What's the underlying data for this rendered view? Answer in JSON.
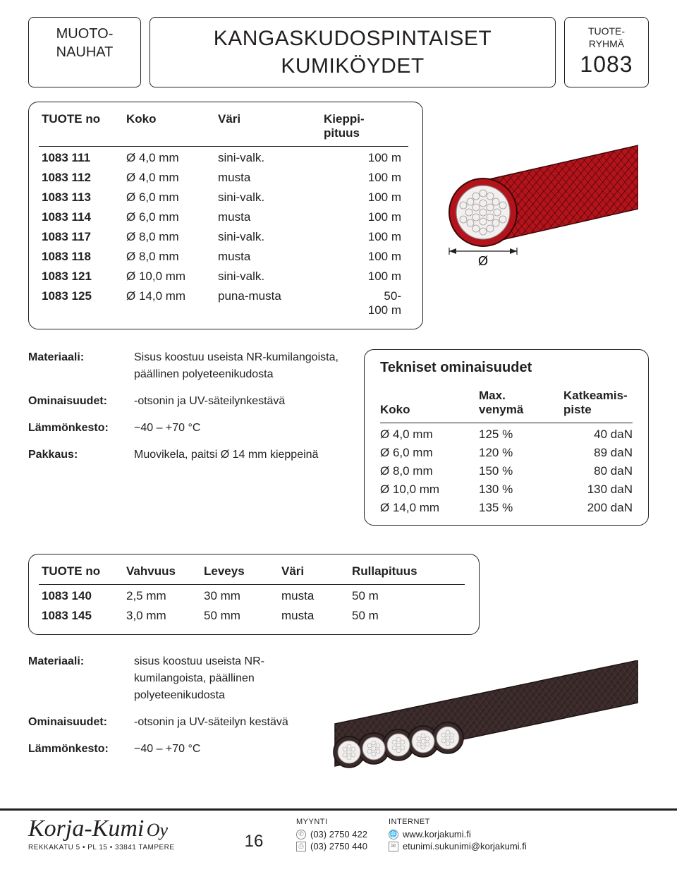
{
  "header": {
    "left_box_line1": "MUOTO-",
    "left_box_line2": "NAUHAT",
    "center_box_line1": "KANGASKUDOSPINTAISET",
    "center_box_line2": "KUMIKÖYDET",
    "right_box_small1": "TUOTE-",
    "right_box_small2": "RYHMÄ",
    "right_box_big": "1083"
  },
  "table1": {
    "headers": {
      "c1": "TUOTE no",
      "c2": "Koko",
      "c3": "Väri",
      "c4": "Kieppi-\npituus"
    },
    "rows": [
      {
        "no": "1083 111",
        "koko": "Ø  4,0 mm",
        "vari": "sini-valk.",
        "pit": "100 m"
      },
      {
        "no": "1083 112",
        "koko": "Ø  4,0 mm",
        "vari": "musta",
        "pit": "100 m"
      },
      {
        "no": "1083 113",
        "koko": "Ø  6,0 mm",
        "vari": "sini-valk.",
        "pit": "100 m"
      },
      {
        "no": "1083 114",
        "koko": "Ø  6,0 mm",
        "vari": "musta",
        "pit": "100 m"
      },
      {
        "no": "1083 117",
        "koko": "Ø  8,0 mm",
        "vari": "sini-valk.",
        "pit": "100 m"
      },
      {
        "no": "1083 118",
        "koko": "Ø  8,0 mm",
        "vari": "musta",
        "pit": "100 m"
      },
      {
        "no": "1083 121",
        "koko": "Ø 10,0 mm",
        "vari": "sini-valk.",
        "pit": "100 m"
      },
      {
        "no": "1083 125",
        "koko": "Ø 14,0 mm",
        "vari": "puna-musta",
        "pit": "50-\n100 m"
      }
    ]
  },
  "cable_fig": {
    "jacket_color": "#b5131b",
    "jacket_stroke": "#3a0607",
    "core_fill": "#f3efef",
    "core_stroke": "#888",
    "dim_label": "Ø"
  },
  "defs1": {
    "material_label": "Materiaali:",
    "material_val": "Sisus koostuu useista NR-kumilangoista, päällinen polyeteenikudosta",
    "omin_label": "Ominaisuudet:",
    "omin_val": "-otsonin ja UV-säteilynkestävä",
    "lammon_label": "Lämmönkesto:",
    "lammon_val": "−40 – +70 °C",
    "pakk_label": "Pakkaus:",
    "pakk_val": "Muovikela, paitsi Ø 14 mm kieppeinä"
  },
  "tech": {
    "title": "Tekniset ominaisuudet",
    "headers": {
      "c1": "Koko",
      "c2": "Max.\nvenymä",
      "c3": "Katkeamis-\npiste"
    },
    "rows": [
      {
        "koko": "Ø   4,0 mm",
        "ven": "125 %",
        "kat": "40 daN"
      },
      {
        "koko": "Ø   6,0 mm",
        "ven": "120 %",
        "kat": "89 daN"
      },
      {
        "koko": "Ø   8,0 mm",
        "ven": "150 %",
        "kat": "80 daN"
      },
      {
        "koko": "Ø 10,0 mm",
        "ven": "130 %",
        "kat": "130 daN"
      },
      {
        "koko": "Ø 14,0 mm",
        "ven": "135 %",
        "kat": "200 daN"
      }
    ]
  },
  "table2": {
    "headers": {
      "d1": "TUOTE no",
      "d2": "Vahvuus",
      "d3": "Leveys",
      "d4": "Väri",
      "d5": "Rullapituus"
    },
    "rows": [
      {
        "no": "1083 140",
        "vah": "2,5 mm",
        "lev": "30 mm",
        "vari": "musta",
        "pit": "50 m"
      },
      {
        "no": "1083 145",
        "vah": "3,0 mm",
        "lev": "50 mm",
        "vari": "musta",
        "pit": "50 m"
      }
    ]
  },
  "defs2": {
    "material_label": "Materiaali:",
    "material_val": "sisus koostuu useista NR-kumilangoista, päällinen polyeteenikudosta",
    "omin_label": "Ominaisuudet:",
    "omin_val": "-otsonin ja UV-säteilyn kestävä",
    "lammon_label": "Lämmönkesto:",
    "lammon_val": "−40 – +70 °C"
  },
  "flat_fig": {
    "jacket_color": "#3a2a2a",
    "jacket_stroke": "#1a1212",
    "core_fill": "#f3efef"
  },
  "footer": {
    "logo_name": "Korja-Kumi",
    "logo_oy": "Oy",
    "address": "REKKAKATU 5  •  PL 15  •  33841 TAMPERE",
    "page_number": "16",
    "myynti_hdr": "MYYNTI",
    "phone1": "(03) 2750 422",
    "phone2": "(03) 2750 440",
    "internet_hdr": "INTERNET",
    "web": "www.korjakumi.fi",
    "email": "etunimi.sukunimi@korjakumi.fi"
  }
}
